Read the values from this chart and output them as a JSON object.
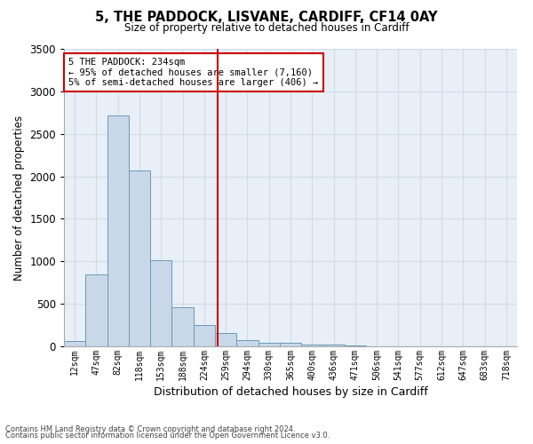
{
  "title": "5, THE PADDOCK, LISVANE, CARDIFF, CF14 0AY",
  "subtitle": "Size of property relative to detached houses in Cardiff",
  "xlabel": "Distribution of detached houses by size in Cardiff",
  "ylabel": "Number of detached properties",
  "bar_color": "#c8d8e8",
  "bar_edge_color": "#6a9ab8",
  "bin_labels": [
    "12sqm",
    "47sqm",
    "82sqm",
    "118sqm",
    "153sqm",
    "188sqm",
    "224sqm",
    "259sqm",
    "294sqm",
    "330sqm",
    "365sqm",
    "400sqm",
    "436sqm",
    "471sqm",
    "506sqm",
    "541sqm",
    "577sqm",
    "612sqm",
    "647sqm",
    "683sqm",
    "718sqm"
  ],
  "bar_heights": [
    60,
    850,
    2720,
    2070,
    1010,
    460,
    250,
    155,
    70,
    45,
    40,
    25,
    20,
    10,
    5,
    3,
    2,
    1,
    0,
    0,
    0
  ],
  "vline_x_index": 6.62,
  "vline_color": "#cc0000",
  "annotation_line1": "5 THE PADDOCK: 234sqm",
  "annotation_line2": "← 95% of detached houses are smaller (7,160)",
  "annotation_line3": "5% of semi-detached houses are larger (406) →",
  "annotation_box_color": "#ffffff",
  "annotation_box_edge": "#cc0000",
  "ylim": [
    0,
    3500
  ],
  "yticks": [
    0,
    500,
    1000,
    1500,
    2000,
    2500,
    3000,
    3500
  ],
  "footnote1": "Contains HM Land Registry data © Crown copyright and database right 2024.",
  "footnote2": "Contains public sector information licensed under the Open Government Licence v3.0.",
  "grid_color": "#d0dce8",
  "bg_color": "#e8eff6"
}
